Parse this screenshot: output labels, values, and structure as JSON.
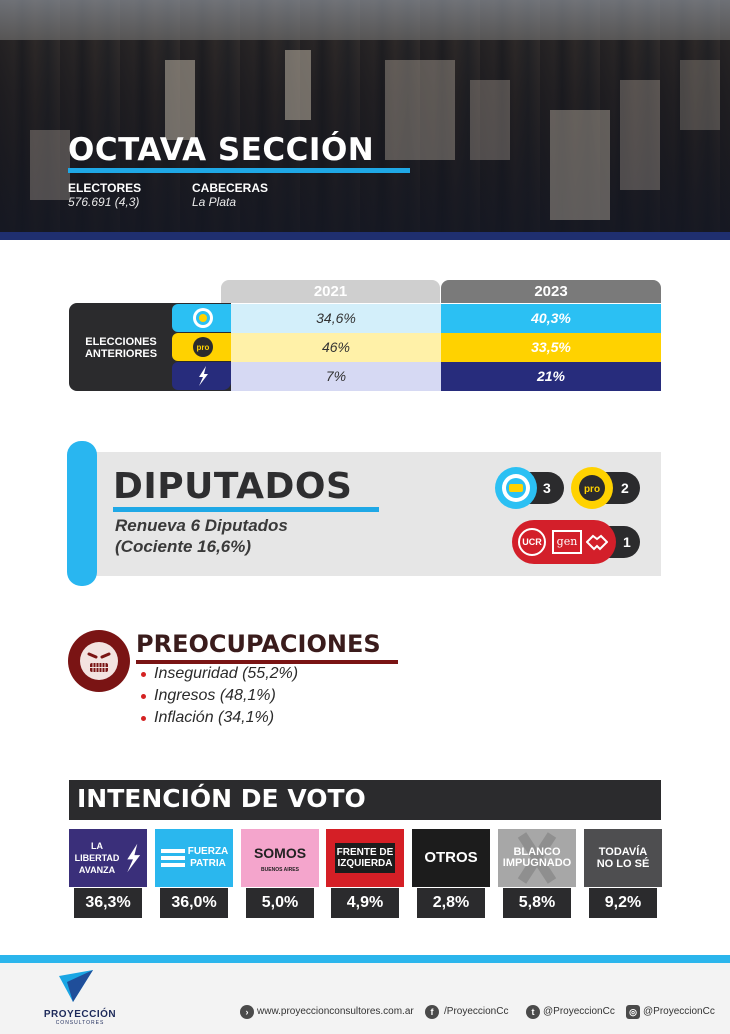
{
  "header": {
    "title": "OCTAVA SECCIÓN",
    "electores_label": "ELECTORES",
    "electores_value": "576.691 (4,3)",
    "cabeceras_label": "CABECERAS",
    "cabeceras_value": "La Plata"
  },
  "elecciones": {
    "label_line1": "ELECCIONES",
    "label_line2": "ANTERIORES",
    "years": [
      "2021",
      "2023"
    ],
    "rows": [
      {
        "party_icon": "sun-icon",
        "v2021": "34,6%",
        "v2023": "40,3%"
      },
      {
        "party_icon": "pro-icon",
        "v2021": "46%",
        "v2023": "33,5%"
      },
      {
        "party_icon": "flame-icon",
        "v2021": "7%",
        "v2023": "21%"
      }
    ],
    "colors": {
      "light": [
        "#d3effa",
        "#fff1a8",
        "#d6d9f3"
      ],
      "dark": [
        "#2bc0f3",
        "#ffd200",
        "#272c7c"
      ]
    }
  },
  "diputados": {
    "title": "DIPUTADOS",
    "line1": "Renueva 6 Diputados",
    "line2": "(Cociente 16,6%)",
    "seats": [
      {
        "icon": "sun-icon",
        "count": "3"
      },
      {
        "icon": "pro-icon",
        "count": "2"
      },
      {
        "icon": "ucr-gen-icon",
        "count": "1",
        "ucr": "UCR",
        "gen": "gen"
      }
    ]
  },
  "preocupaciones": {
    "title": "PREOCUPACIONES",
    "items": [
      "Inseguridad (55,2%)",
      "Ingresos (48,1%)",
      "Inflación (34,1%)"
    ]
  },
  "intencion": {
    "title": "INTENCIÓN DE VOTO",
    "parties": [
      {
        "label": "LA LIBERTAD AVANZA",
        "pct": "36,3%",
        "color": "#3a2f7a"
      },
      {
        "label": "FUERZA PATRIA",
        "pct": "36,0%",
        "color": "#2ab7ee"
      },
      {
        "label": "SOMOS",
        "sub": "BUENOS AIRES",
        "pct": "5,0%",
        "color": "#f4a5cc"
      },
      {
        "label": "FRENTE DE IZQUIERDA",
        "pct": "4,9%",
        "color": "#d51f26"
      },
      {
        "label": "OTROS",
        "pct": "2,8%",
        "color": "#1c1c1c"
      },
      {
        "label": "BLANCO IMPUGNADO",
        "pct": "5,8%",
        "color": "#a7a7a7"
      },
      {
        "label": "TODAVÍA NO LO SÉ",
        "pct": "9,2%",
        "color": "#4e4e50"
      }
    ]
  },
  "footer": {
    "brand": "PROYECCIÓN",
    "brand_sub": "CONSULTORES",
    "web": "www.proyeccionconsultores.com.ar",
    "facebook": "/ProyeccionCc",
    "twitter": "@ProyeccionCc",
    "instagram": "@ProyeccionCc"
  }
}
